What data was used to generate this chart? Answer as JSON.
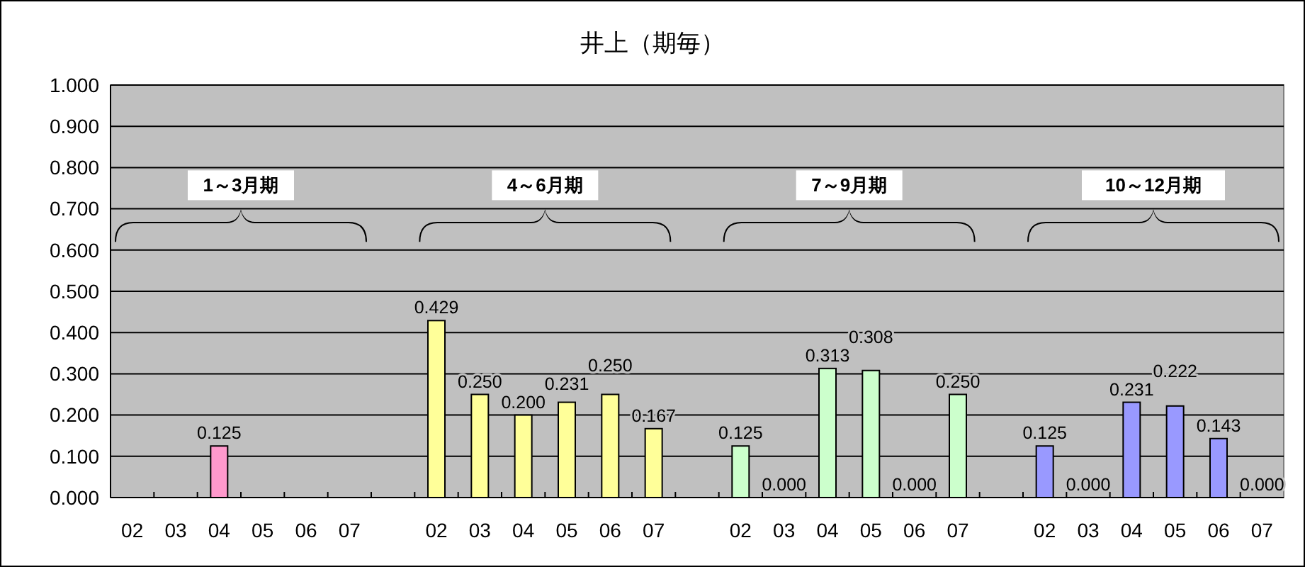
{
  "chart_data": {
    "type": "bar",
    "title": "井上（期毎）",
    "categories": [
      "02",
      "03",
      "04",
      "05",
      "06",
      "07",
      null,
      "02",
      "03",
      "04",
      "05",
      "06",
      "07",
      null,
      "02",
      "03",
      "04",
      "05",
      "06",
      "07",
      null,
      "02",
      "03",
      "04",
      "05",
      "06",
      "07"
    ],
    "values": [
      null,
      null,
      0.125,
      null,
      null,
      null,
      null,
      0.429,
      0.25,
      0.2,
      0.231,
      0.25,
      0.167,
      null,
      0.125,
      0,
      0.313,
      0.308,
      0,
      0.25,
      null,
      0.125,
      0,
      0.231,
      0.222,
      0.143,
      0
    ],
    "value_labels": [
      null,
      null,
      "0.125",
      null,
      null,
      null,
      null,
      "0.429",
      "0.250",
      "0.200",
      "0.231",
      "0.250",
      "0.167",
      null,
      "0.125",
      "0.000",
      "0.313",
      "0.308",
      "0.000",
      "0.250",
      null,
      "0.125",
      "0.000",
      "0.231",
      "0.222",
      "0.143",
      "0.000"
    ],
    "colors": [
      null,
      null,
      "#ff99cc",
      null,
      null,
      null,
      null,
      "#ffff99",
      "#ffff99",
      "#ffff99",
      "#ffff99",
      "#ffff99",
      "#ffff99",
      null,
      "#ccffcc",
      "#ccffcc",
      "#ccffcc",
      "#ccffcc",
      "#ccffcc",
      "#ccffcc",
      null,
      "#9999ff",
      "#9999ff",
      "#9999ff",
      "#9999ff",
      "#9999ff",
      "#9999ff"
    ],
    "ylim": [
      0,
      1
    ],
    "yticks": [
      {
        "value": 0,
        "label": "0.000"
      },
      {
        "value": 0.1,
        "label": "0.100"
      },
      {
        "value": 0.2,
        "label": "0.200"
      },
      {
        "value": 0.3,
        "label": "0.300"
      },
      {
        "value": 0.4,
        "label": "0.400"
      },
      {
        "value": 0.5,
        "label": "0.500"
      },
      {
        "value": 0.6,
        "label": "0.600"
      },
      {
        "value": 0.7,
        "label": "0.700"
      },
      {
        "value": 0.8,
        "label": "0.800"
      },
      {
        "value": 0.9,
        "label": "0.900"
      },
      {
        "value": 1,
        "label": "1.000"
      }
    ],
    "grid": "y",
    "annotations": [
      "1～3月期",
      "4～6月期",
      "7～9月期",
      "10～12月期"
    ]
  }
}
